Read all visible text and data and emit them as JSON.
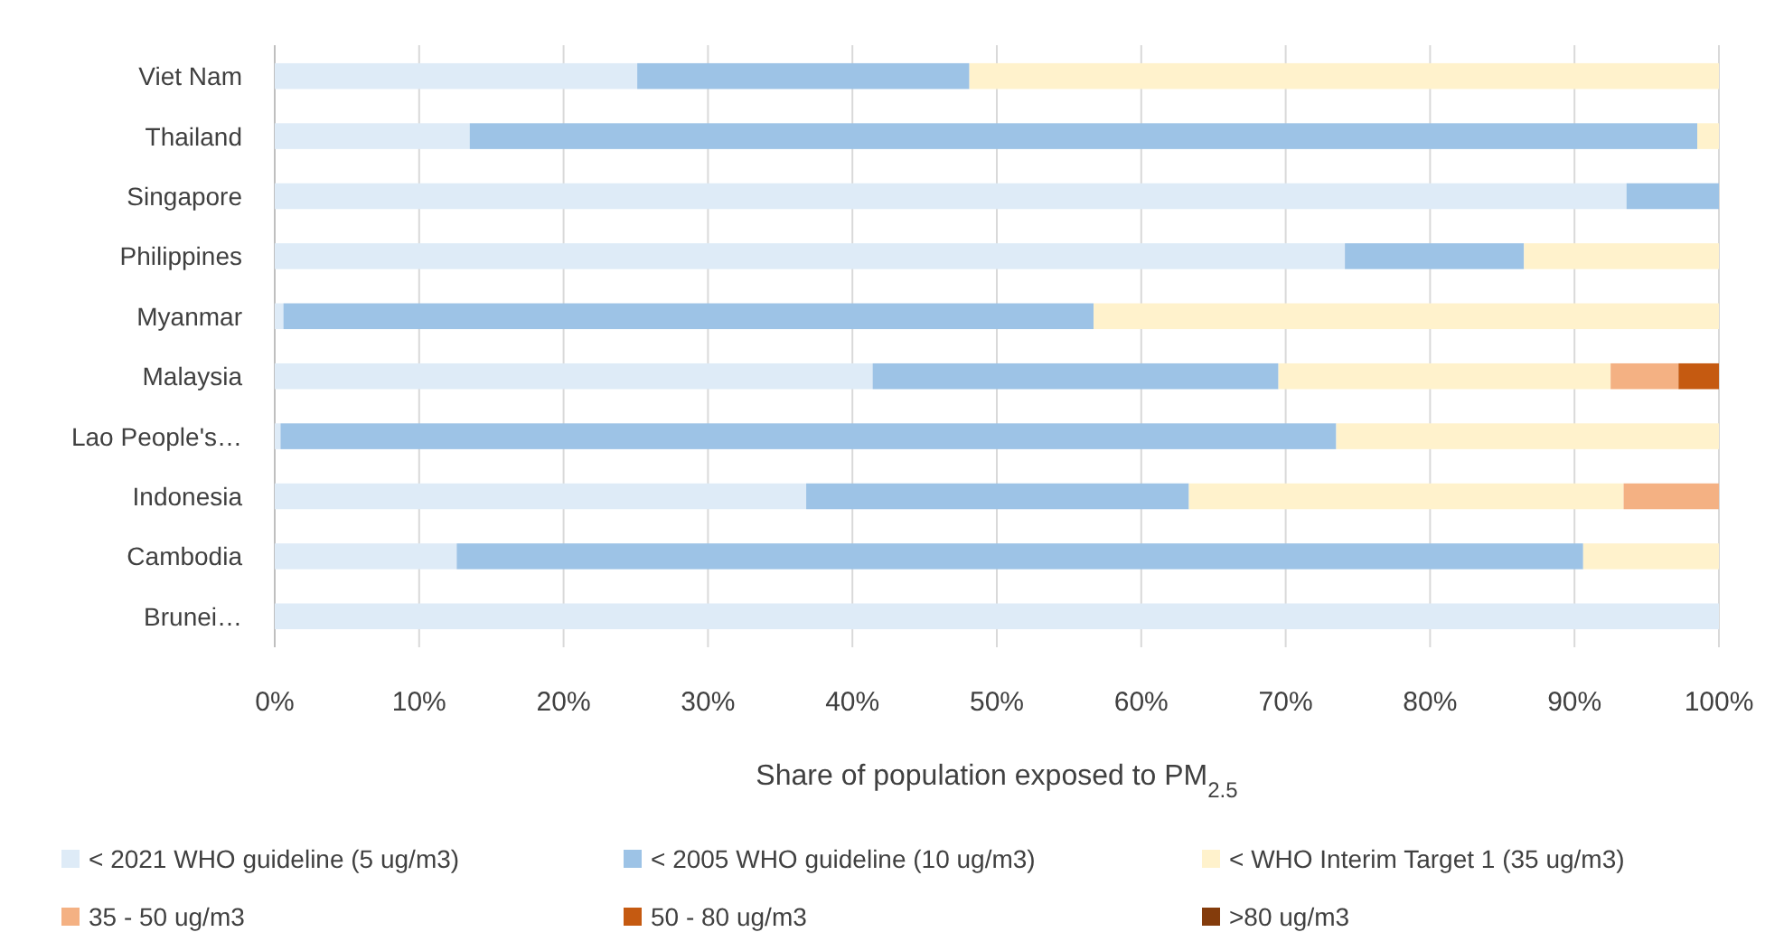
{
  "chart_data": {
    "type": "bar",
    "orientation": "horizontal",
    "stacked": true,
    "xlabel": "Share of population exposed to PM$_{2.5}$",
    "categories": [
      "Viet Nam",
      "Thailand",
      "Singapore",
      "Philippines",
      "Myanmar",
      "Malaysia",
      "Lao People's…",
      "Indonesia",
      "Cambodia",
      "Brunei…"
    ],
    "series": [
      {
        "name": "< 2021 WHO guideline (5 ug/m3)",
        "color": "#deebf7",
        "values": [
          25.1,
          13.5,
          93.6,
          74.1,
          0.6,
          41.4,
          0.4,
          36.8,
          12.6,
          100
        ]
      },
      {
        "name": "< 2005 WHO guideline (10 ug/m3)",
        "color": "#9dc3e6",
        "values": [
          23,
          85,
          6.4,
          12.4,
          56.1,
          28.1,
          73.1,
          26.5,
          78,
          0
        ]
      },
      {
        "name": "< WHO Interim Target 1 (35 ug/m3)",
        "color": "#fff2cc",
        "values": [
          51.9,
          1.5,
          0,
          13.5,
          43.3,
          23,
          26.5,
          30.1,
          9.4,
          0
        ]
      },
      {
        "name": "35 - 50 ug/m3",
        "color": "#f4b183",
        "values": [
          0,
          0,
          0,
          0,
          0,
          4.7,
          0,
          6.6,
          0,
          0
        ]
      },
      {
        "name": "50 - 80 ug/m3",
        "color": "#c55a11",
        "values": [
          0,
          0,
          0,
          0,
          0,
          2.8,
          0,
          0,
          0,
          0
        ]
      },
      {
        "name": ">80 ug/m3",
        "color": "#843c0c",
        "values": [
          0,
          0,
          0,
          0,
          0,
          0,
          0,
          0,
          0,
          0
        ]
      }
    ],
    "xlim": [
      0,
      100
    ],
    "xticks": [
      {
        "value": 0,
        "label": "0%"
      },
      {
        "value": 10,
        "label": "10%"
      },
      {
        "value": 20,
        "label": "20%"
      },
      {
        "value": 30,
        "label": "30%"
      },
      {
        "value": 40,
        "label": "40%"
      },
      {
        "value": 50,
        "label": "50%"
      },
      {
        "value": 60,
        "label": "60%"
      },
      {
        "value": 70,
        "label": "70%"
      },
      {
        "value": 80,
        "label": "80%"
      },
      {
        "value": 90,
        "label": "90%"
      },
      {
        "value": 100,
        "label": "100%"
      }
    ],
    "grid": "x",
    "legend": "bottom"
  }
}
